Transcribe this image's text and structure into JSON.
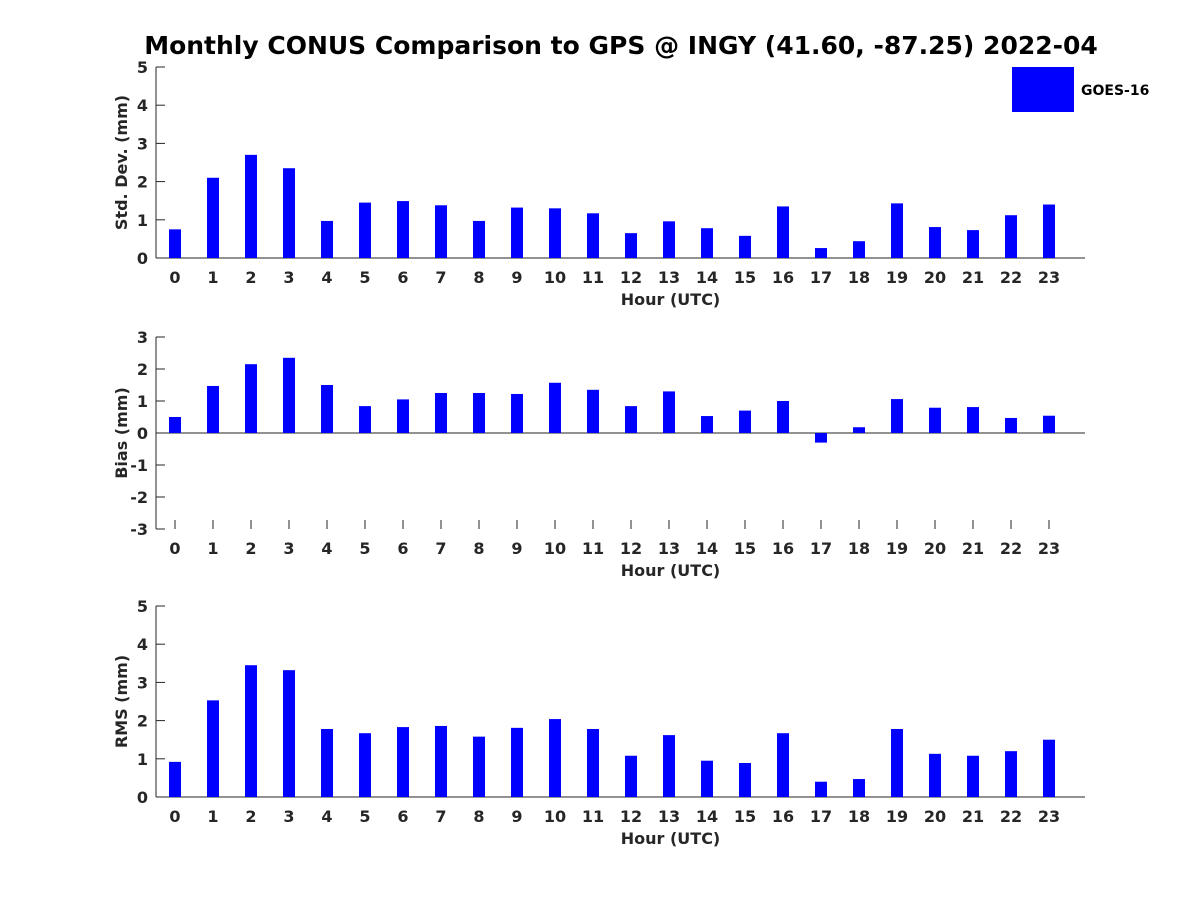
{
  "title": "Monthly CONUS Comparison to GPS @ INGY (41.60, -87.25) 2022-04",
  "colors": {
    "bar": "#0000ff",
    "axis": "#262626"
  },
  "legend": {
    "label": "GOES-16",
    "placement": "top-right"
  },
  "chart_data": [
    {
      "type": "bar",
      "xlabel": "Hour (UTC)",
      "ylabel": "Std. Dev. (mm)",
      "ylim": [
        0,
        5
      ],
      "yticks": [
        0,
        1,
        2,
        3,
        4,
        5
      ],
      "categories": [
        "0",
        "1",
        "2",
        "3",
        "4",
        "5",
        "6",
        "7",
        "8",
        "9",
        "10",
        "11",
        "12",
        "13",
        "14",
        "15",
        "16",
        "17",
        "18",
        "19",
        "20",
        "21",
        "22",
        "23"
      ],
      "series": [
        {
          "name": "GOES-16",
          "values": [
            0.75,
            2.1,
            2.7,
            2.35,
            0.97,
            1.45,
            1.49,
            1.38,
            0.97,
            1.32,
            1.3,
            1.17,
            0.65,
            0.96,
            0.78,
            0.58,
            1.35,
            0.26,
            0.44,
            1.43,
            0.81,
            0.73,
            1.12,
            1.4
          ]
        }
      ]
    },
    {
      "type": "bar",
      "xlabel": "Hour (UTC)",
      "ylabel": "Bias (mm)",
      "ylim": [
        -3,
        3
      ],
      "yticks": [
        -3,
        -2,
        -1,
        0,
        1,
        2,
        3
      ],
      "categories": [
        "0",
        "1",
        "2",
        "3",
        "4",
        "5",
        "6",
        "7",
        "8",
        "9",
        "10",
        "11",
        "12",
        "13",
        "14",
        "15",
        "16",
        "17",
        "18",
        "19",
        "20",
        "21",
        "22",
        "23"
      ],
      "series": [
        {
          "name": "GOES-16",
          "values": [
            0.5,
            1.47,
            2.15,
            2.35,
            1.5,
            0.84,
            1.05,
            1.25,
            1.25,
            1.22,
            1.57,
            1.35,
            0.84,
            1.3,
            0.53,
            0.7,
            1.0,
            -0.3,
            0.18,
            1.06,
            0.79,
            0.81,
            0.47,
            0.54
          ]
        }
      ]
    },
    {
      "type": "bar",
      "xlabel": "Hour (UTC)",
      "ylabel": "RMS (mm)",
      "ylim": [
        0,
        5
      ],
      "yticks": [
        0,
        1,
        2,
        3,
        4,
        5
      ],
      "categories": [
        "0",
        "1",
        "2",
        "3",
        "4",
        "5",
        "6",
        "7",
        "8",
        "9",
        "10",
        "11",
        "12",
        "13",
        "14",
        "15",
        "16",
        "17",
        "18",
        "19",
        "20",
        "21",
        "22",
        "23"
      ],
      "series": [
        {
          "name": "GOES-16",
          "values": [
            0.92,
            2.53,
            3.45,
            3.32,
            1.78,
            1.67,
            1.83,
            1.86,
            1.58,
            1.81,
            2.04,
            1.78,
            1.08,
            1.62,
            0.95,
            0.89,
            1.67,
            0.4,
            0.47,
            1.78,
            1.13,
            1.08,
            1.2,
            1.5
          ]
        }
      ]
    }
  ]
}
